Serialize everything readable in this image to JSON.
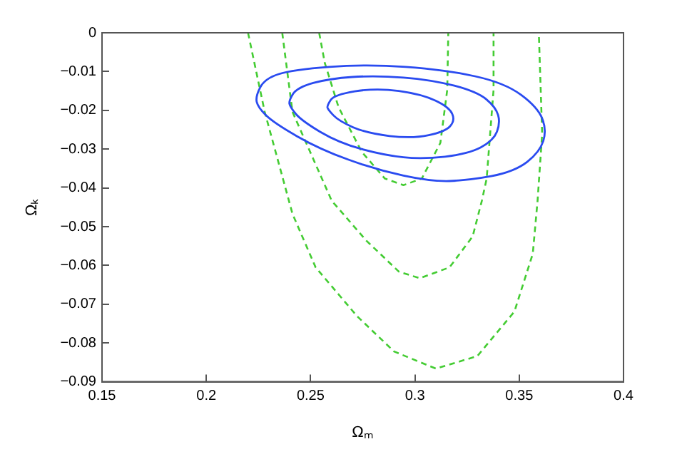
{
  "chart_data": {
    "type": "line",
    "xlabel": "Ωₘ",
    "ylabel": "Ωₖ",
    "xlim": [
      0.15,
      0.4
    ],
    "xticks": [
      0.15,
      0.2,
      0.25,
      0.3,
      0.35,
      0.4
    ],
    "ylim": [
      -0.09,
      0
    ],
    "yticks": [
      -0.09,
      -0.08,
      -0.07,
      -0.06,
      -0.05,
      -0.04,
      -0.03,
      -0.02,
      -0.01,
      0
    ],
    "series": [
      {
        "color": "#44cc33",
        "line_style": "dashed",
        "x": [
          0.2541,
          0.2568,
          0.2634,
          0.2745,
          0.2856,
          0.2945,
          0.3033,
          0.3122,
          0.3155,
          0.316
        ],
        "values": [
          0,
          -0.0078,
          -0.0192,
          -0.0307,
          -0.0376,
          -0.0393,
          -0.0376,
          -0.0284,
          -0.0147,
          0
        ]
      },
      {
        "color": "#44cc33",
        "line_style": "dashed",
        "x": [
          0.2364,
          0.2413,
          0.2601,
          0.2767,
          0.2923,
          0.3023,
          0.3166,
          0.3277,
          0.3321,
          0.3344,
          0.3377,
          0.3377
        ],
        "values": [
          0,
          -0.0204,
          -0.0433,
          -0.0536,
          -0.0616,
          -0.0633,
          -0.0605,
          -0.0525,
          -0.0433,
          -0.0376,
          -0.0147,
          0
        ]
      },
      {
        "color": "#44cc33",
        "line_style": "dashed",
        "x": [
          0.22,
          0.228,
          0.2413,
          0.2524,
          0.2723,
          0.29,
          0.31,
          0.3299,
          0.3477,
          0.3565,
          0.3588,
          0.361,
          0.3594
        ],
        "values": [
          0,
          -0.0204,
          -0.0467,
          -0.0605,
          -0.0731,
          -0.0822,
          -0.0866,
          -0.0834,
          -0.0719,
          -0.057,
          -0.0433,
          -0.0261,
          0
        ]
      }
    ]
  }
}
